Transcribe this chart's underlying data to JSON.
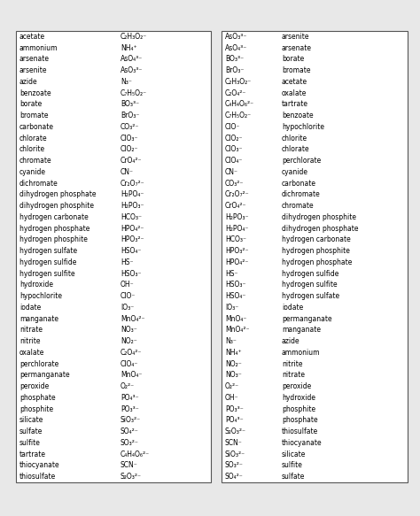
{
  "left_table": [
    [
      "acetate",
      "C₂H₃O₂⁻"
    ],
    [
      "ammonium",
      "NH₄⁺"
    ],
    [
      "arsenate",
      "AsO₄³⁻"
    ],
    [
      "arsenite",
      "AsO₃³⁻"
    ],
    [
      "azide",
      "N₃⁻"
    ],
    [
      "benzoate",
      "C₇H₅O₂⁻"
    ],
    [
      "borate",
      "BO₃³⁻"
    ],
    [
      "bromate",
      "BrO₃⁻"
    ],
    [
      "carbonate",
      "CO₃²⁻"
    ],
    [
      "chlorate",
      "ClO₃⁻"
    ],
    [
      "chlorite",
      "ClO₂⁻"
    ],
    [
      "chromate",
      "CrO₄²⁻"
    ],
    [
      "cyanide",
      "CN⁻"
    ],
    [
      "dichromate",
      "Cr₂O₇²⁻"
    ],
    [
      "dihydrogen phosphate",
      "H₂PO₄⁻"
    ],
    [
      "dihydrogen phosphite",
      "H₂PO₃⁻"
    ],
    [
      "hydrogen carbonate",
      "HCO₃⁻"
    ],
    [
      "hydrogen phosphate",
      "HPO₄²⁻"
    ],
    [
      "hydrogen phosphite",
      "HPO₃²⁻"
    ],
    [
      "hydrogen sulfate",
      "HSO₄⁻"
    ],
    [
      "hydrogen sulfide",
      "HS⁻"
    ],
    [
      "hydrogen sulfite",
      "HSO₃⁻"
    ],
    [
      "hydroxide",
      "OH⁻"
    ],
    [
      "hypochlorite",
      "ClO⁻"
    ],
    [
      "iodate",
      "IO₃⁻"
    ],
    [
      "manganate",
      "MnO₄²⁻"
    ],
    [
      "nitrate",
      "NO₃⁻"
    ],
    [
      "nitrite",
      "NO₂⁻"
    ],
    [
      "oxalate",
      "C₂O₄²⁻"
    ],
    [
      "perchlorate",
      "ClO₄⁻"
    ],
    [
      "permanganate",
      "MnO₄⁻"
    ],
    [
      "peroxide",
      "O₂²⁻"
    ],
    [
      "phosphate",
      "PO₄³⁻"
    ],
    [
      "phosphite",
      "PO₃³⁻"
    ],
    [
      "silicate",
      "SiO₃²⁻"
    ],
    [
      "sulfate",
      "SO₄²⁻"
    ],
    [
      "sulfite",
      "SO₃²⁻"
    ],
    [
      "tartrate",
      "C₄H₄O₆²⁻"
    ],
    [
      "thiocyanate",
      "SCN⁻"
    ],
    [
      "thiosulfate",
      "S₂O₃²⁻"
    ]
  ],
  "right_table": [
    [
      "AsO₃³⁻",
      "arsenite"
    ],
    [
      "AsO₄³⁻",
      "arsenate"
    ],
    [
      "BO₃³⁻",
      "borate"
    ],
    [
      "BrO₃⁻",
      "bromate"
    ],
    [
      "C₂H₃O₂⁻",
      "acetate"
    ],
    [
      "C₂O₄²⁻",
      "oxalate"
    ],
    [
      "C₄H₄O₆²⁻",
      "tartrate"
    ],
    [
      "C₇H₅O₂⁻",
      "benzoate"
    ],
    [
      "ClO⁻",
      "hypochlorite"
    ],
    [
      "ClO₂⁻",
      "chlorite"
    ],
    [
      "ClO₃⁻",
      "chlorate"
    ],
    [
      "ClO₄⁻",
      "perchlorate"
    ],
    [
      "CN⁻",
      "cyanide"
    ],
    [
      "CO₃²⁻",
      "carbonate"
    ],
    [
      "Cr₂O₇²⁻",
      "dichromate"
    ],
    [
      "CrO₄²⁻",
      "chromate"
    ],
    [
      "H₂PO₃⁻",
      "dihydrogen phosphite"
    ],
    [
      "H₂PO₄⁻",
      "dihydrogen phosphate"
    ],
    [
      "HCO₃⁻",
      "hydrogen carbonate"
    ],
    [
      "HPO₃²⁻",
      "hydrogen phosphite"
    ],
    [
      "HPO₄²⁻",
      "hydrogen phosphate"
    ],
    [
      "HS⁻",
      "hydrogen sulfide"
    ],
    [
      "HSO₃⁻",
      "hydrogen sulfite"
    ],
    [
      "HSO₄⁻",
      "hydrogen sulfate"
    ],
    [
      "IO₃⁻",
      "iodate"
    ],
    [
      "MnO₄⁻",
      "permanganate"
    ],
    [
      "MnO₄²⁻",
      "manganate"
    ],
    [
      "N₃⁻",
      "azide"
    ],
    [
      "NH₄⁺",
      "ammonium"
    ],
    [
      "NO₂⁻",
      "nitrite"
    ],
    [
      "NO₃⁻",
      "nitrate"
    ],
    [
      "O₂²⁻",
      "peroxide"
    ],
    [
      "OH⁻",
      "hydroxide"
    ],
    [
      "PO₃³⁻",
      "phosphite"
    ],
    [
      "PO₄³⁻",
      "phosphate"
    ],
    [
      "S₂O₃²⁻",
      "thiosulfate"
    ],
    [
      "SCN⁻",
      "thiocyanate"
    ],
    [
      "SiO₃²⁻",
      "silicate"
    ],
    [
      "SO₃²⁻",
      "sulfite"
    ],
    [
      "SO₄²⁻",
      "sulfate"
    ]
  ],
  "background": "#e8e8e8",
  "table_bg": "#ffffff",
  "text_color": "#000000",
  "border_color": "#555555",
  "font_size": 5.5
}
